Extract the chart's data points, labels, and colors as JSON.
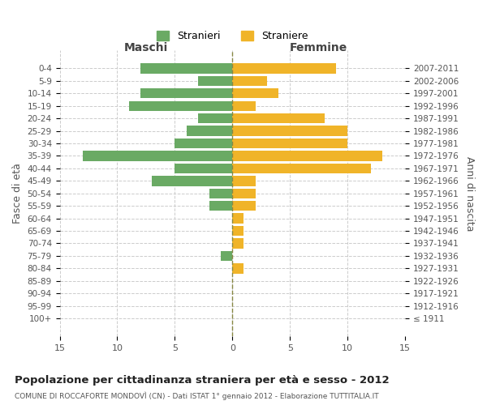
{
  "age_groups": [
    "0-4",
    "5-9",
    "10-14",
    "15-19",
    "20-24",
    "25-29",
    "30-34",
    "35-39",
    "40-44",
    "45-49",
    "50-54",
    "55-59",
    "60-64",
    "65-69",
    "70-74",
    "75-79",
    "80-84",
    "85-89",
    "90-94",
    "95-99",
    "100+"
  ],
  "birth_years": [
    "2007-2011",
    "2002-2006",
    "1997-2001",
    "1992-1996",
    "1987-1991",
    "1982-1986",
    "1977-1981",
    "1972-1976",
    "1967-1971",
    "1962-1966",
    "1957-1961",
    "1952-1956",
    "1947-1951",
    "1942-1946",
    "1937-1941",
    "1932-1936",
    "1927-1931",
    "1922-1926",
    "1917-1921",
    "1912-1916",
    "≤ 1911"
  ],
  "males": [
    8,
    3,
    8,
    9,
    3,
    4,
    5,
    13,
    5,
    7,
    2,
    2,
    0,
    0,
    0,
    1,
    0,
    0,
    0,
    0,
    0
  ],
  "females": [
    9,
    3,
    4,
    2,
    8,
    10,
    10,
    13,
    12,
    2,
    2,
    2,
    1,
    1,
    1,
    0,
    1,
    0,
    0,
    0,
    0
  ],
  "male_color": "#6aaa64",
  "female_color": "#f0b429",
  "title_main": "Popolazione per cittadinanza straniera per età e sesso - 2012",
  "title_sub": "COMUNE DI ROCCAFORTE MONDOVÌ (CN) - Dati ISTAT 1° gennaio 2012 - Elaborazione TUTTITALIA.IT",
  "xlabel_left": "Maschi",
  "xlabel_right": "Femmine",
  "ylabel_left": "Fasce di età",
  "ylabel_right": "Anni di nascita",
  "legend_male": "Stranieri",
  "legend_female": "Straniere",
  "xlim": 15,
  "background_color": "#ffffff",
  "grid_color": "#cccccc",
  "bar_height": 0.8,
  "dashed_line_color": "#888844"
}
